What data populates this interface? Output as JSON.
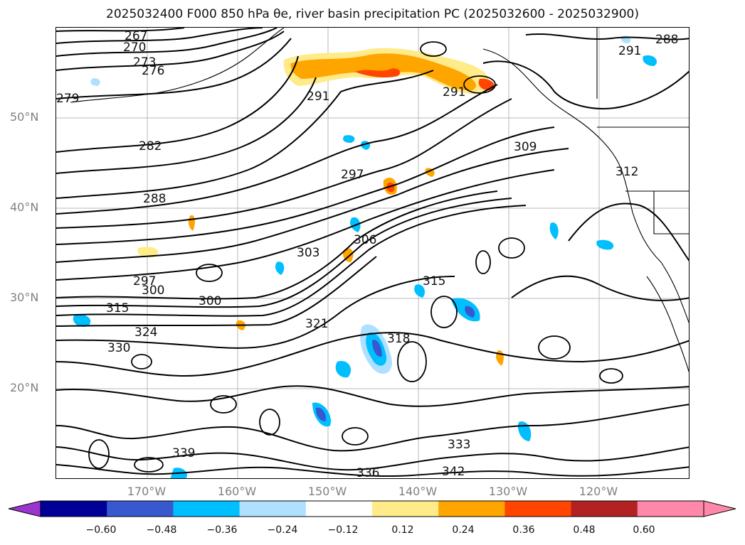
{
  "title": "2025032400 F000 850 hPa θe, river basin precipitation PC (2025032600 - 2025032900)",
  "map": {
    "lat_labels": [
      "50°N",
      "40°N",
      "30°N",
      "20°N"
    ],
    "lon_labels": [
      "170°W",
      "160°W",
      "150°W",
      "140°W",
      "130°W",
      "120°W"
    ],
    "contour_labels": [
      "267",
      "270",
      "273",
      "276",
      "279",
      "282",
      "288",
      "291",
      "291",
      "297",
      "300",
      "303",
      "306",
      "309",
      "312",
      "315",
      "318",
      "321",
      "324",
      "330",
      "333",
      "336",
      "339",
      "342",
      "297",
      "300",
      "315",
      "291",
      "288"
    ],
    "grid": true
  },
  "colorbar": {
    "ticks": [
      "−0.60",
      "−0.48",
      "−0.36",
      "−0.24",
      "−0.12",
      "0.12",
      "0.24",
      "0.36",
      "0.48",
      "0.60"
    ],
    "colors": [
      "#9a35d0",
      "#000096",
      "#3758cf",
      "#00bfff",
      "#b0e0ff",
      "#ffffff",
      "#ffeb8a",
      "#ffa500",
      "#ff4500",
      "#b22222",
      "#ff88aa",
      "#ff88aa"
    ],
    "extend": "both"
  }
}
